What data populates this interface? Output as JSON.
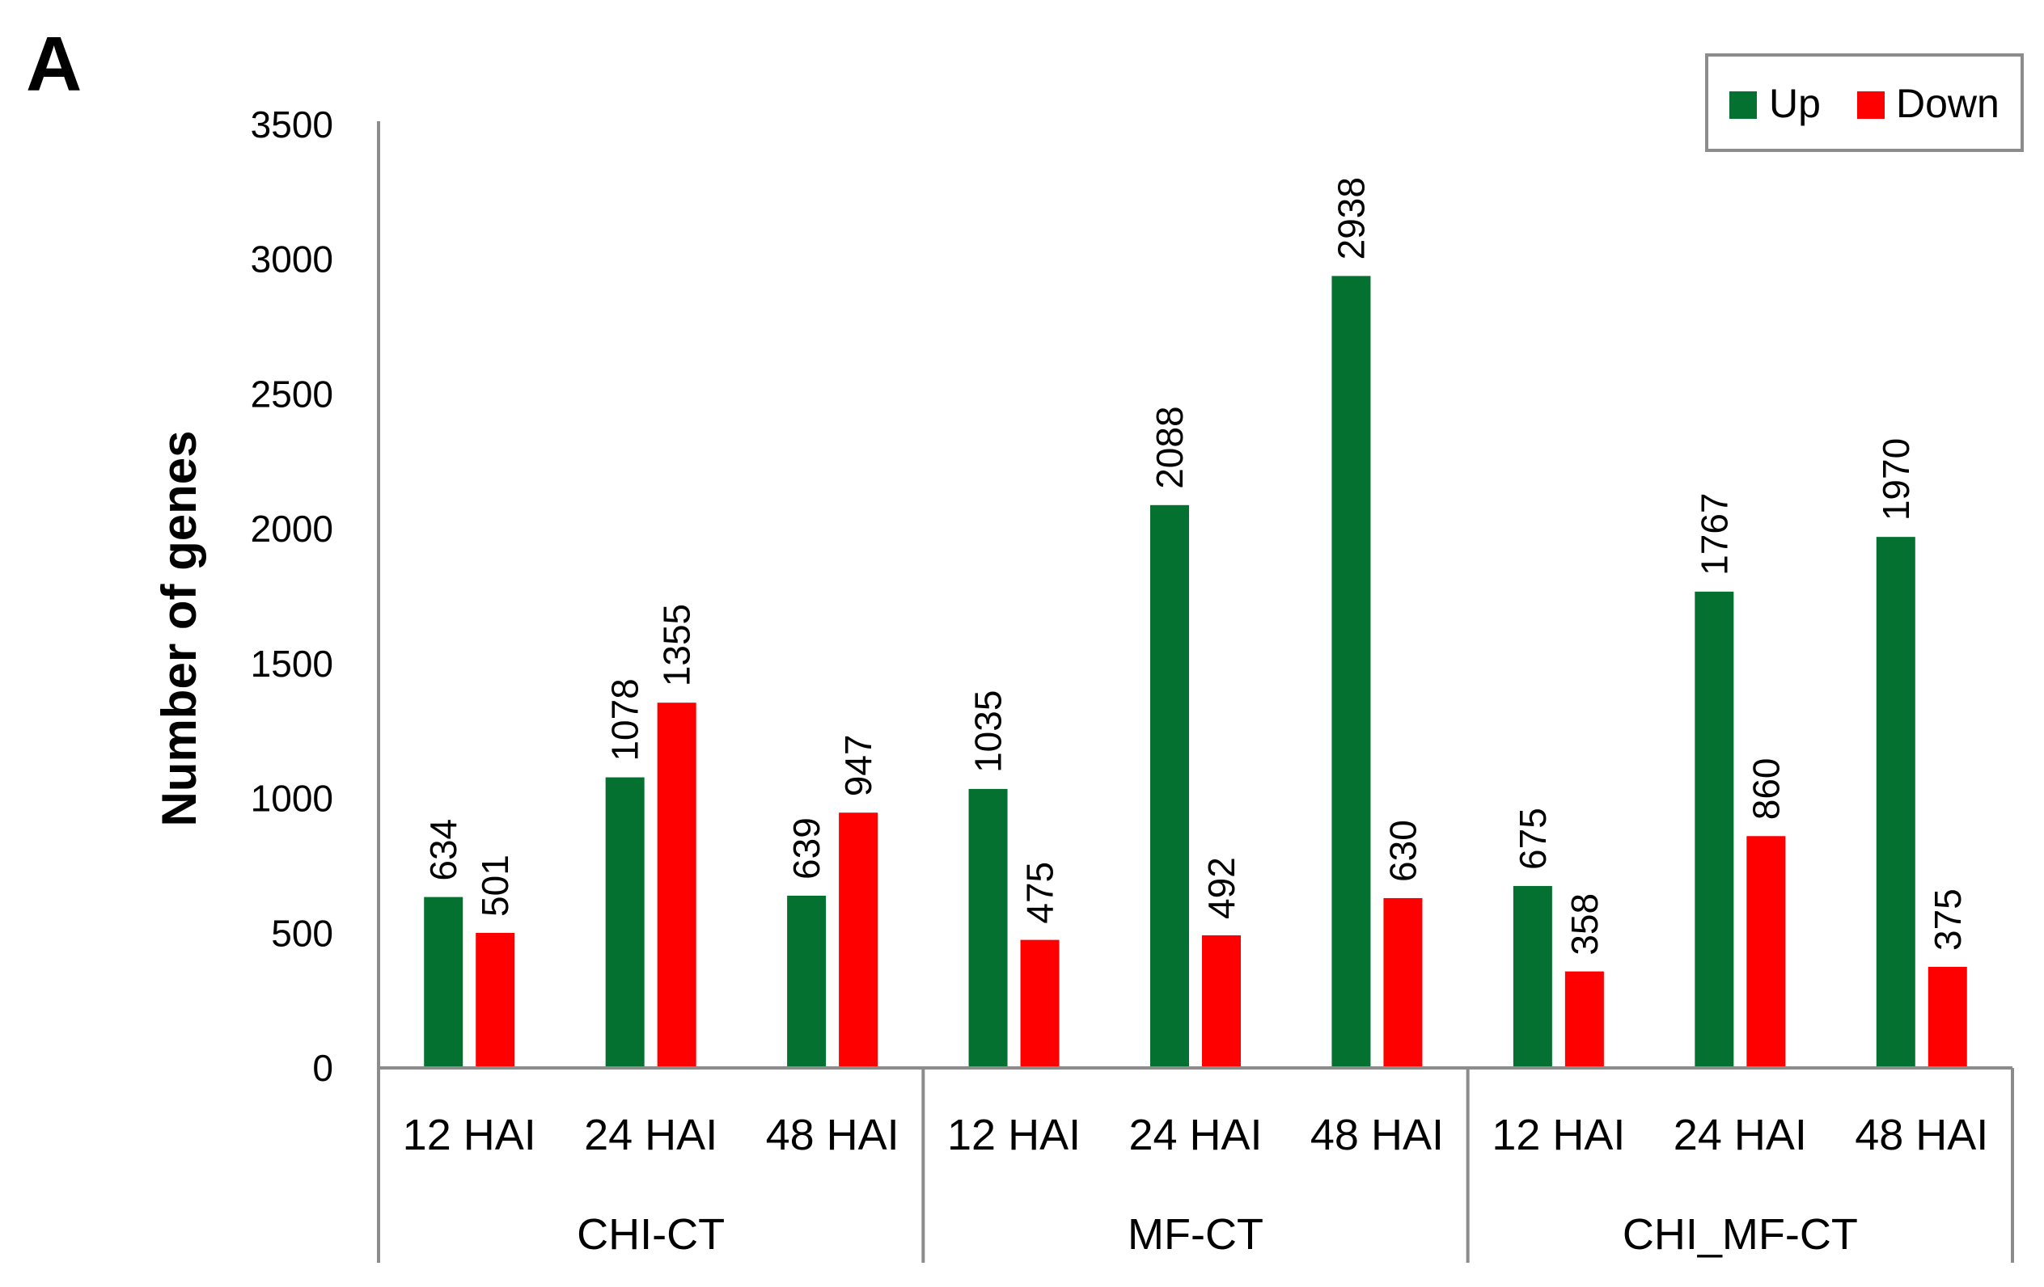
{
  "panel_label": "A",
  "colors": {
    "up": "#047131",
    "down": "#fe0000",
    "axis": "#8c8c8c"
  },
  "chart_data": {
    "type": "bar",
    "ylabel": "Number of genes",
    "xlabel": "",
    "ylim": [
      0,
      3500
    ],
    "yticks": [
      0,
      500,
      1000,
      1500,
      2000,
      2500,
      3000,
      3500
    ],
    "grid": false,
    "legend_position": "top-right",
    "groups": [
      {
        "name": "CHI-CT",
        "categories": [
          "12 HAI",
          "24 HAI",
          "48 HAI"
        ]
      },
      {
        "name": "MF-CT",
        "categories": [
          "12 HAI",
          "24 HAI",
          "48 HAI"
        ]
      },
      {
        "name": "CHI_MF-CT",
        "categories": [
          "12 HAI",
          "24 HAI",
          "48 HAI"
        ]
      }
    ],
    "categories": [
      "12 HAI",
      "24 HAI",
      "48 HAI",
      "12 HAI",
      "24 HAI",
      "48 HAI",
      "12 HAI",
      "24 HAI",
      "48 HAI"
    ],
    "series": [
      {
        "name": "Up",
        "values": [
          634,
          1078,
          639,
          1035,
          2088,
          2938,
          675,
          1767,
          1970
        ]
      },
      {
        "name": "Down",
        "values": [
          501,
          1355,
          947,
          475,
          492,
          630,
          358,
          860,
          375
        ]
      }
    ]
  }
}
